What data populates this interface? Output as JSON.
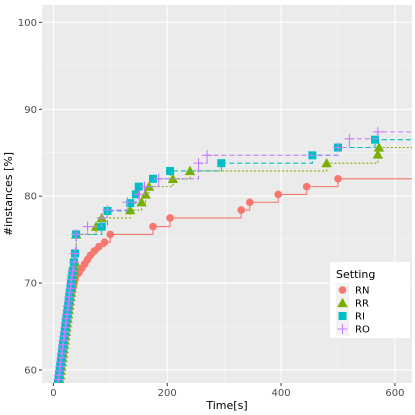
{
  "chart_data": {
    "type": "line",
    "xlabel": "Time[s]",
    "ylabel": "#instances [%]",
    "xlim": [
      -20,
      630
    ],
    "ylim": [
      58.5,
      102
    ],
    "x_ticks": [
      0,
      200,
      400,
      600
    ],
    "y_ticks": [
      60,
      70,
      80,
      90,
      100
    ],
    "x_tick_labels": [
      "0",
      "200",
      "400",
      "600"
    ],
    "y_tick_labels": [
      "60",
      "70",
      "80",
      "90",
      "100"
    ],
    "grid": true,
    "legend": {
      "title": "Setting",
      "placement": "right"
    },
    "series": [
      {
        "name": "RN",
        "color": "#F8766D",
        "marker": "circle",
        "line": "solid",
        "x": [
          10,
          11,
          12,
          13,
          14,
          15,
          16,
          17,
          18,
          19,
          20,
          21,
          22,
          23,
          24,
          25,
          26,
          27,
          28,
          29,
          30,
          32,
          34,
          36,
          38,
          40,
          45,
          50,
          55,
          60,
          65,
          72,
          80,
          90,
          100,
          175,
          205,
          330,
          345,
          395,
          445,
          500,
          640
        ],
        "y": [
          58.4,
          58.9,
          59.4,
          59.9,
          60.4,
          60.9,
          61.4,
          61.9,
          62.4,
          62.9,
          63.4,
          63.9,
          64.4,
          64.9,
          65.4,
          65.9,
          66.4,
          66.9,
          67.4,
          67.9,
          68.4,
          68.9,
          69.4,
          69.9,
          70.4,
          70.9,
          71.2,
          71.7,
          72.2,
          72.7,
          73.2,
          73.7,
          74.2,
          74.7,
          75.6,
          76.5,
          77.5,
          78.4,
          79.3,
          80.2,
          81.1,
          82.0,
          82.0
        ]
      },
      {
        "name": "RR",
        "color": "#7CAE00",
        "marker": "triangle",
        "line": "dotted",
        "x": [
          10,
          11,
          12,
          13,
          14,
          15,
          16,
          17,
          18,
          19,
          20,
          21,
          22,
          23,
          24,
          25,
          26,
          27,
          28,
          29,
          30,
          31,
          32,
          33,
          34,
          35,
          36,
          37,
          38,
          40,
          75,
          85,
          135,
          155,
          162,
          168,
          210,
          240,
          480,
          570,
          572,
          640
        ],
        "y": [
          58.4,
          58.9,
          59.4,
          59.9,
          60.4,
          60.9,
          61.4,
          61.9,
          62.4,
          62.9,
          63.4,
          63.9,
          64.4,
          64.9,
          65.4,
          65.9,
          66.4,
          66.9,
          67.4,
          67.9,
          68.4,
          68.9,
          69.4,
          69.9,
          70.4,
          70.9,
          71.4,
          71.9,
          72.4,
          75.6,
          76.5,
          77.5,
          78.4,
          79.3,
          80.2,
          81.1,
          82.0,
          82.9,
          83.8,
          84.8,
          85.6,
          85.6
        ]
      },
      {
        "name": "RI",
        "color": "#00BFC4",
        "marker": "square",
        "line": "dashed",
        "x": [
          8,
          9,
          10,
          11,
          12,
          13,
          14,
          15,
          16,
          17,
          18,
          19,
          20,
          21,
          22,
          23,
          24,
          25,
          26,
          27,
          28,
          29,
          30,
          31,
          32,
          33,
          34,
          36,
          38,
          40,
          85,
          95,
          135,
          145,
          150,
          175,
          205,
          295,
          455,
          500,
          565,
          640
        ],
        "y": [
          58.4,
          58.9,
          59.4,
          59.9,
          60.4,
          60.9,
          61.4,
          61.9,
          62.4,
          62.9,
          63.4,
          63.9,
          64.4,
          64.9,
          65.4,
          65.9,
          66.4,
          66.9,
          67.4,
          67.9,
          68.4,
          68.9,
          69.4,
          69.9,
          70.4,
          70.9,
          71.4,
          72.4,
          73.4,
          75.6,
          76.5,
          78.3,
          79.2,
          80.2,
          81.1,
          82.0,
          82.9,
          83.8,
          84.7,
          85.6,
          86.5,
          86.5
        ]
      },
      {
        "name": "RO",
        "color": "#C77CFF",
        "marker": "cross",
        "line": "dashed",
        "x": [
          8,
          9,
          10,
          11,
          12,
          13,
          14,
          15,
          16,
          17,
          18,
          19,
          20,
          21,
          22,
          23,
          24,
          25,
          26,
          27,
          28,
          29,
          30,
          31,
          32,
          33,
          34,
          36,
          38,
          40,
          60,
          85,
          95,
          130,
          150,
          160,
          185,
          255,
          270,
          500,
          520,
          570,
          640
        ],
        "y": [
          58.4,
          58.9,
          59.4,
          59.9,
          60.4,
          60.9,
          61.4,
          61.9,
          62.4,
          62.9,
          63.4,
          63.9,
          64.4,
          64.9,
          65.4,
          65.9,
          66.4,
          66.9,
          67.4,
          67.9,
          68.4,
          68.9,
          69.4,
          69.9,
          70.4,
          70.9,
          71.4,
          72.4,
          73.4,
          75.6,
          76.5,
          77.5,
          78.4,
          79.3,
          80.2,
          81.1,
          82.0,
          83.8,
          84.7,
          85.6,
          86.6,
          87.4,
          87.4
        ]
      }
    ]
  }
}
